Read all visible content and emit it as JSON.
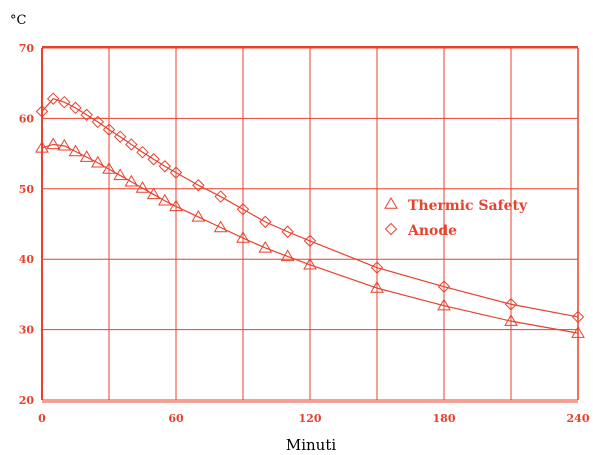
{
  "chart_data": {
    "type": "line",
    "title": "",
    "ylabel": "°C",
    "xlabel": "Minuti",
    "xlim": [
      0,
      240
    ],
    "ylim": [
      20,
      70
    ],
    "x_ticks": [
      0,
      60,
      120,
      180,
      240
    ],
    "y_ticks": [
      20,
      30,
      40,
      50,
      60,
      70
    ],
    "grid": true,
    "grid_x_step": 30,
    "grid_y_step": 10,
    "legend_position": "right-middle",
    "color": "#e8412c",
    "series": [
      {
        "name": "Thermic Safety",
        "marker": "triangle",
        "points": [
          [
            0,
            55.8
          ],
          [
            5,
            56.3
          ],
          [
            10,
            56.1
          ],
          [
            15,
            55.3
          ],
          [
            20,
            54.5
          ],
          [
            25,
            53.7
          ],
          [
            30,
            52.8
          ],
          [
            35,
            51.9
          ],
          [
            40,
            51.0
          ],
          [
            45,
            50.1
          ],
          [
            50,
            49.2
          ],
          [
            55,
            48.3
          ],
          [
            60,
            47.5
          ],
          [
            70,
            46.0
          ],
          [
            80,
            44.5
          ],
          [
            90,
            43.0
          ],
          [
            100,
            41.6
          ],
          [
            110,
            40.4
          ],
          [
            120,
            39.2
          ],
          [
            150,
            35.9
          ],
          [
            180,
            33.4
          ],
          [
            210,
            31.2
          ],
          [
            240,
            29.5
          ]
        ]
      },
      {
        "name": "Anode",
        "marker": "diamond",
        "points": [
          [
            0,
            61.0
          ],
          [
            5,
            62.8
          ],
          [
            10,
            62.3
          ],
          [
            15,
            61.5
          ],
          [
            20,
            60.5
          ],
          [
            25,
            59.5
          ],
          [
            30,
            58.4
          ],
          [
            35,
            57.4
          ],
          [
            40,
            56.3
          ],
          [
            45,
            55.2
          ],
          [
            50,
            54.2
          ],
          [
            55,
            53.2
          ],
          [
            60,
            52.3
          ],
          [
            70,
            50.5
          ],
          [
            80,
            48.9
          ],
          [
            90,
            47.1
          ],
          [
            100,
            45.3
          ],
          [
            110,
            43.9
          ],
          [
            120,
            42.6
          ],
          [
            150,
            38.8
          ],
          [
            180,
            36.1
          ],
          [
            210,
            33.6
          ],
          [
            240,
            31.8
          ]
        ]
      }
    ]
  }
}
